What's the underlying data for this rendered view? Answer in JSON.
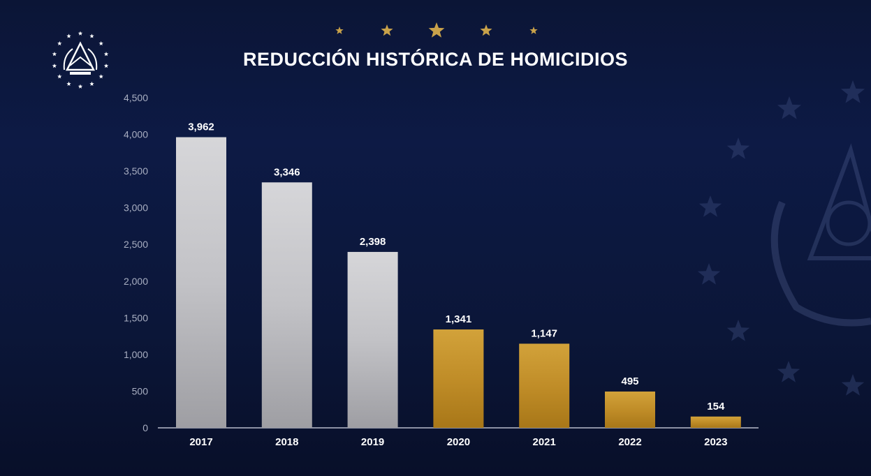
{
  "colors": {
    "background": "#0b1638",
    "title": "#ffffff",
    "gold": "#c9962a",
    "silver": "#c4c4c7",
    "axis_text": "#a9afc2",
    "star": "#c9a24a"
  },
  "emblem": {
    "name": "el-salvador-coat-of-arms"
  },
  "chart_data": {
    "type": "bar",
    "title": "REDUCCIÓN HISTÓRICA DE HOMICIDIOS",
    "xlabel": "",
    "ylabel": "",
    "categories": [
      "2017",
      "2018",
      "2019",
      "2020",
      "2021",
      "2022",
      "2023"
    ],
    "values": [
      3962,
      3346,
      2398,
      1341,
      1147,
      495,
      154
    ],
    "value_labels": [
      "3,962",
      "3,346",
      "2,398",
      "1,341",
      "1,147",
      "495",
      "154"
    ],
    "bar_colors": [
      "silver",
      "silver",
      "silver",
      "gold",
      "gold",
      "gold",
      "gold"
    ],
    "ylim": [
      0,
      4500
    ],
    "yticks": [
      0,
      500,
      1000,
      1500,
      2000,
      2500,
      3000,
      3500,
      4000,
      4500
    ],
    "ytick_labels": [
      "0",
      "500",
      "1,000",
      "1,500",
      "2,000",
      "2,500",
      "3,000",
      "3,500",
      "4,000",
      "4,500"
    ],
    "grid": false,
    "legend": "none"
  }
}
